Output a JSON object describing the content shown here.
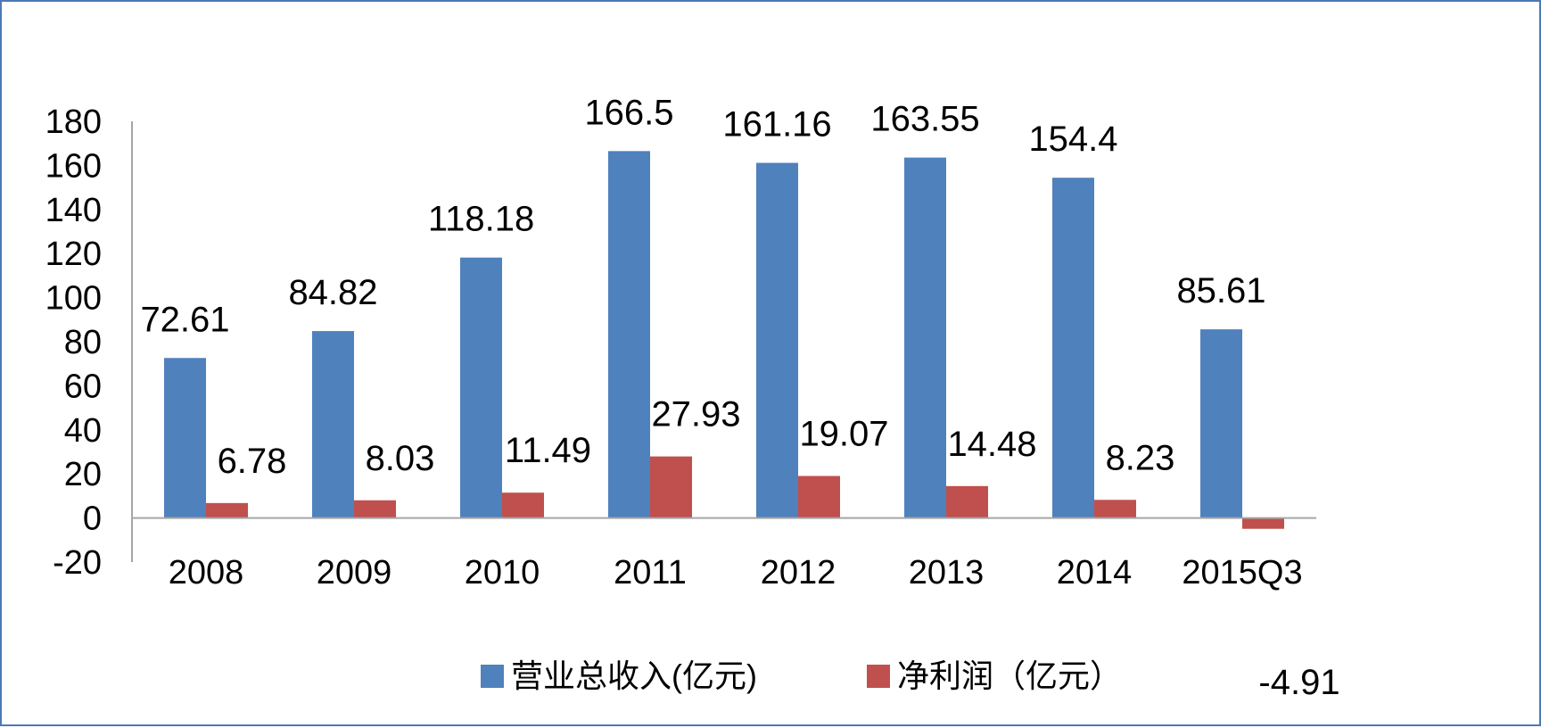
{
  "chart_data": {
    "type": "bar",
    "categories": [
      "2008",
      "2009",
      "2010",
      "2011",
      "2012",
      "2013",
      "2014",
      "2015Q3"
    ],
    "series": [
      {
        "name": "营业总收入(亿元)",
        "color": "#4f81bd",
        "values": [
          72.61,
          84.82,
          118.18,
          166.5,
          161.16,
          163.55,
          154.4,
          85.61
        ],
        "labels": [
          "72.61",
          "84.82",
          "118.18",
          "166.5",
          "161.16",
          "163.55",
          "154.4",
          "85.61"
        ]
      },
      {
        "name": "净利润（亿元）",
        "color": "#c0504d",
        "values": [
          6.78,
          8.03,
          11.49,
          27.93,
          19.07,
          14.48,
          8.23,
          -4.91
        ],
        "labels": [
          "6.78",
          "8.03",
          "11.49",
          "27.93",
          "19.07",
          "14.48",
          "8.23",
          "-4.91"
        ]
      }
    ],
    "ylim": [
      -20,
      180
    ],
    "yticks": [
      "-20",
      "0",
      "20",
      "40",
      "60",
      "80",
      "100",
      "120",
      "140",
      "160",
      "180"
    ],
    "title": "",
    "xlabel": "",
    "ylabel": "",
    "grid": false,
    "legend": "bottom",
    "axis_color": "#a6a6a6",
    "frame_color": "#4a7ab5"
  }
}
